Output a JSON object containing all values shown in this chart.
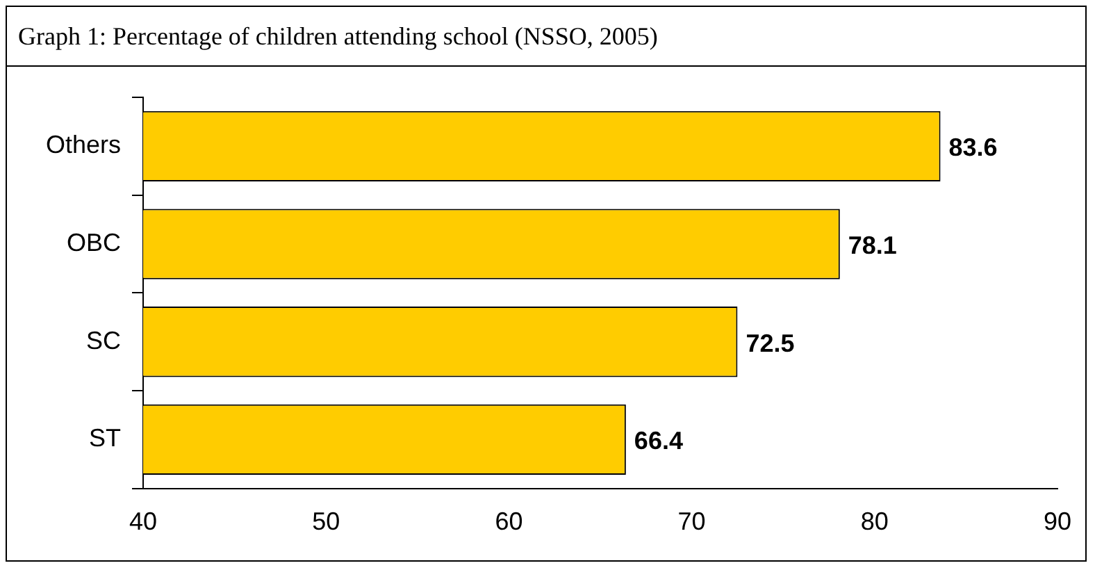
{
  "chart_data": {
    "type": "bar",
    "orientation": "horizontal",
    "title": "Graph 1: Percentage of children attending school (NSSO, 2005)",
    "categories": [
      "Others",
      "OBC",
      "SC",
      "ST"
    ],
    "values": [
      83.6,
      78.1,
      72.5,
      66.4
    ],
    "color": "#ffcc00",
    "xlim": [
      40,
      90
    ],
    "xticks": [
      40,
      50,
      60,
      70,
      80,
      90
    ],
    "grid": false,
    "data_labels": true
  }
}
